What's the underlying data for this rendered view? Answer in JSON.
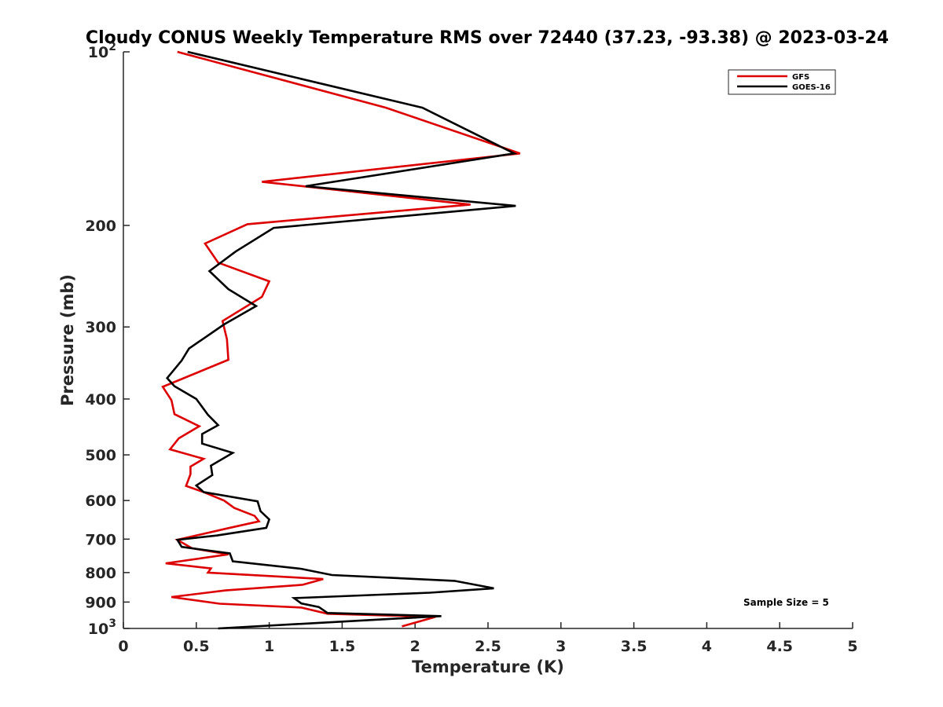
{
  "chart_data": {
    "type": "line",
    "title": "Cloudy CONUS Weekly Temperature RMS over 72440 (37.23, -93.38) @ 2023-03-24",
    "xlabel": "Temperature (K)",
    "ylabel": "Pressure (mb)",
    "xlim": [
      0,
      5
    ],
    "ylim": [
      100,
      1000
    ],
    "y_scale": "log",
    "y_reversed": true,
    "xticks": [
      0,
      0.5,
      1,
      1.5,
      2,
      2.5,
      3,
      3.5,
      4,
      4.5,
      5
    ],
    "xtick_labels": [
      "0",
      "0.5",
      "1",
      "1.5",
      "2",
      "2.5",
      "3",
      "3.5",
      "4",
      "4.5",
      "5"
    ],
    "yticks": [
      100,
      200,
      300,
      400,
      500,
      600,
      700,
      800,
      900,
      1000
    ],
    "ytick_labels": [
      {
        "base": "10",
        "exp": "2"
      },
      {
        "base": "200",
        "exp": ""
      },
      {
        "base": "300",
        "exp": ""
      },
      {
        "base": "400",
        "exp": ""
      },
      {
        "base": "500",
        "exp": ""
      },
      {
        "base": "600",
        "exp": ""
      },
      {
        "base": "700",
        "exp": ""
      },
      {
        "base": "800",
        "exp": ""
      },
      {
        "base": "900",
        "exp": ""
      },
      {
        "base": "10",
        "exp": "3"
      }
    ],
    "grid": false,
    "legend_position": "top-right",
    "annotation": "Sample Size = 5",
    "series": [
      {
        "name": "GFS",
        "color": "#dd0000",
        "points": [
          [
            0.37,
            100
          ],
          [
            1.8,
            125
          ],
          [
            2.72,
            150
          ],
          [
            0.95,
            168
          ],
          [
            2.38,
            184
          ],
          [
            0.85,
            199
          ],
          [
            0.56,
            215
          ],
          [
            0.65,
            232
          ],
          [
            1.0,
            250
          ],
          [
            0.95,
            266
          ],
          [
            0.68,
            293
          ],
          [
            0.71,
            315
          ],
          [
            0.72,
            342
          ],
          [
            0.27,
            381
          ],
          [
            0.33,
            402
          ],
          [
            0.35,
            425
          ],
          [
            0.52,
            446
          ],
          [
            0.38,
            468
          ],
          [
            0.32,
            489
          ],
          [
            0.55,
            508
          ],
          [
            0.46,
            524
          ],
          [
            0.46,
            540
          ],
          [
            0.43,
            566
          ],
          [
            0.55,
            580
          ],
          [
            0.69,
            600
          ],
          [
            0.76,
            618
          ],
          [
            0.9,
            638
          ],
          [
            0.93,
            652
          ],
          [
            0.72,
            670
          ],
          [
            0.37,
            702
          ],
          [
            0.47,
            726
          ],
          [
            0.72,
            744
          ],
          [
            0.29,
            771
          ],
          [
            0.6,
            787
          ],
          [
            0.58,
            800
          ],
          [
            1.37,
            821
          ],
          [
            1.23,
            840
          ],
          [
            0.7,
            859
          ],
          [
            0.33,
            882
          ],
          [
            0.66,
            906
          ],
          [
            1.22,
            920
          ],
          [
            1.4,
            943
          ],
          [
            2.14,
            955
          ],
          [
            1.91,
            992
          ]
        ]
      },
      {
        "name": "GOES-16",
        "color": "#000000",
        "points": [
          [
            0.44,
            100
          ],
          [
            2.05,
            125
          ],
          [
            2.68,
            150
          ],
          [
            1.25,
            171
          ],
          [
            2.69,
            185
          ],
          [
            1.03,
            202
          ],
          [
            0.77,
            222
          ],
          [
            0.59,
            240
          ],
          [
            0.72,
            258
          ],
          [
            0.91,
            276
          ],
          [
            0.69,
            297
          ],
          [
            0.45,
            327
          ],
          [
            0.4,
            343
          ],
          [
            0.3,
            368
          ],
          [
            0.35,
            380
          ],
          [
            0.5,
            400
          ],
          [
            0.58,
            426
          ],
          [
            0.65,
            444
          ],
          [
            0.54,
            460
          ],
          [
            0.54,
            478
          ],
          [
            0.75,
            496
          ],
          [
            0.6,
            522
          ],
          [
            0.61,
            542
          ],
          [
            0.5,
            565
          ],
          [
            0.55,
            580
          ],
          [
            0.92,
            602
          ],
          [
            0.94,
            626
          ],
          [
            1.0,
            647
          ],
          [
            0.98,
            669
          ],
          [
            0.64,
            690
          ],
          [
            0.37,
            702
          ],
          [
            0.4,
            722
          ],
          [
            0.73,
            741
          ],
          [
            0.75,
            765
          ],
          [
            1.22,
            788
          ],
          [
            1.43,
            808
          ],
          [
            2.27,
            827
          ],
          [
            2.54,
            852
          ],
          [
            2.1,
            867
          ],
          [
            1.17,
            886
          ],
          [
            1.22,
            905
          ],
          [
            1.34,
            918
          ],
          [
            1.4,
            940
          ],
          [
            2.18,
            952
          ],
          [
            0.65,
            1000
          ]
        ]
      }
    ]
  }
}
